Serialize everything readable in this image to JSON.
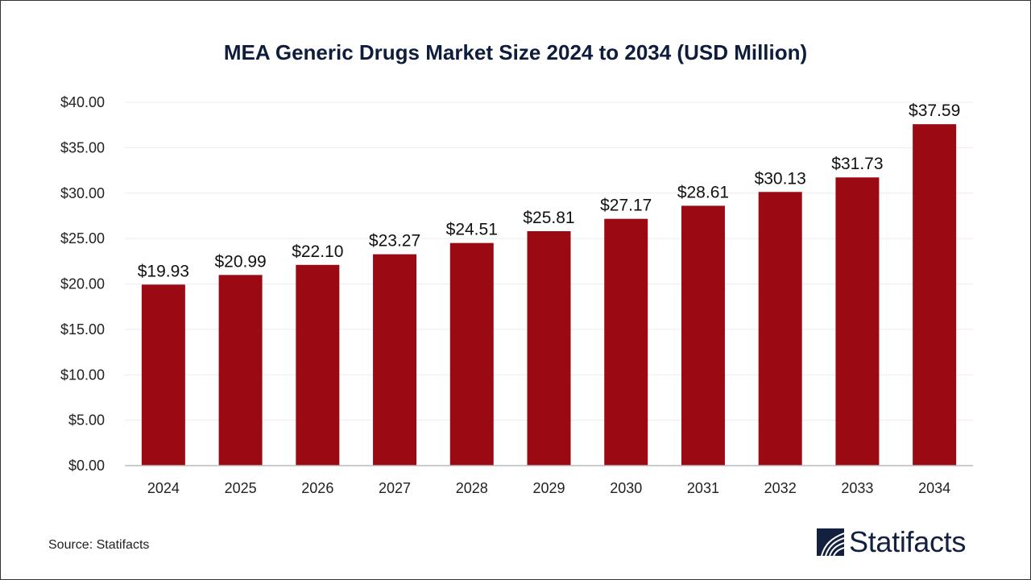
{
  "chart_data": {
    "type": "bar",
    "title": "MEA Generic Drugs Market Size 2024 to 2034 (USD Million)",
    "categories": [
      "2024",
      "2025",
      "2026",
      "2027",
      "2028",
      "2029",
      "2030",
      "2031",
      "2032",
      "2033",
      "2034"
    ],
    "values": [
      19.93,
      20.99,
      22.1,
      23.27,
      24.51,
      25.81,
      27.17,
      28.61,
      30.13,
      31.73,
      37.59
    ],
    "data_labels": [
      "$19.93",
      "$20.99",
      "$22.10",
      "$23.27",
      "$24.51",
      "$25.81",
      "$27.17",
      "$28.61",
      "$30.13",
      "$31.73",
      "$37.59"
    ],
    "y_ticks": [
      "$0.00",
      "$5.00",
      "$10.00",
      "$15.00",
      "$20.00",
      "$25.00",
      "$30.00",
      "$35.00",
      "$40.00"
    ],
    "ylim": [
      0,
      40
    ],
    "xlabel": "",
    "ylabel": "",
    "grid": true,
    "legend": "none",
    "bar_color": "#9b0a12"
  },
  "source": "Source: Statifacts",
  "logo": {
    "text": "Statifacts",
    "color": "#14203f"
  }
}
